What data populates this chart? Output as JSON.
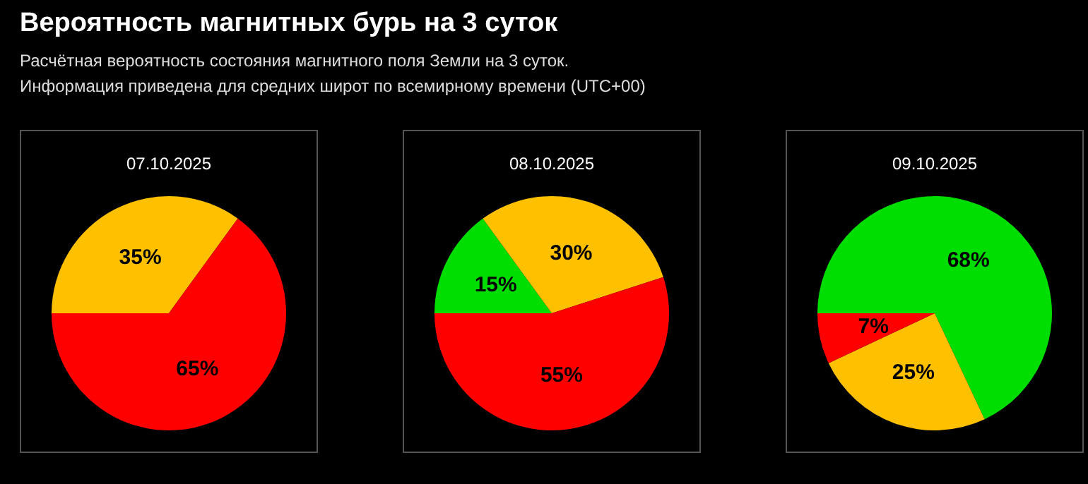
{
  "chart_data": [
    {
      "type": "other",
      "title": "Вероятность магнитных бурь на 3 суток",
      "subtitle": "Расчётная вероятность состояния магнитного поля Земли на 3 суток.\nИнформация приведена для средних широт по всемирному времени (UTC+00)"
    },
    {
      "type": "pie",
      "title": "07.10.2025",
      "categories": [
        null,
        null
      ],
      "values": [
        35,
        65
      ],
      "colors": [
        "#ffc000",
        "#ff0000"
      ],
      "value_labels": [
        "35%",
        "65%"
      ]
    },
    {
      "type": "pie",
      "title": "08.10.2025",
      "categories": [
        null,
        null,
        null
      ],
      "values": [
        15,
        30,
        55
      ],
      "colors": [
        "#00dd00",
        "#ffc000",
        "#ff0000"
      ],
      "value_labels": [
        "15%",
        "30%",
        "55%"
      ]
    },
    {
      "type": "pie",
      "title": "09.10.2025",
      "categories": [
        null,
        null,
        null
      ],
      "values": [
        68,
        25,
        7
      ],
      "colors": [
        "#00dd00",
        "#ffc000",
        "#ff0000"
      ],
      "value_labels": [
        "68%",
        "25%",
        "7%"
      ]
    }
  ]
}
